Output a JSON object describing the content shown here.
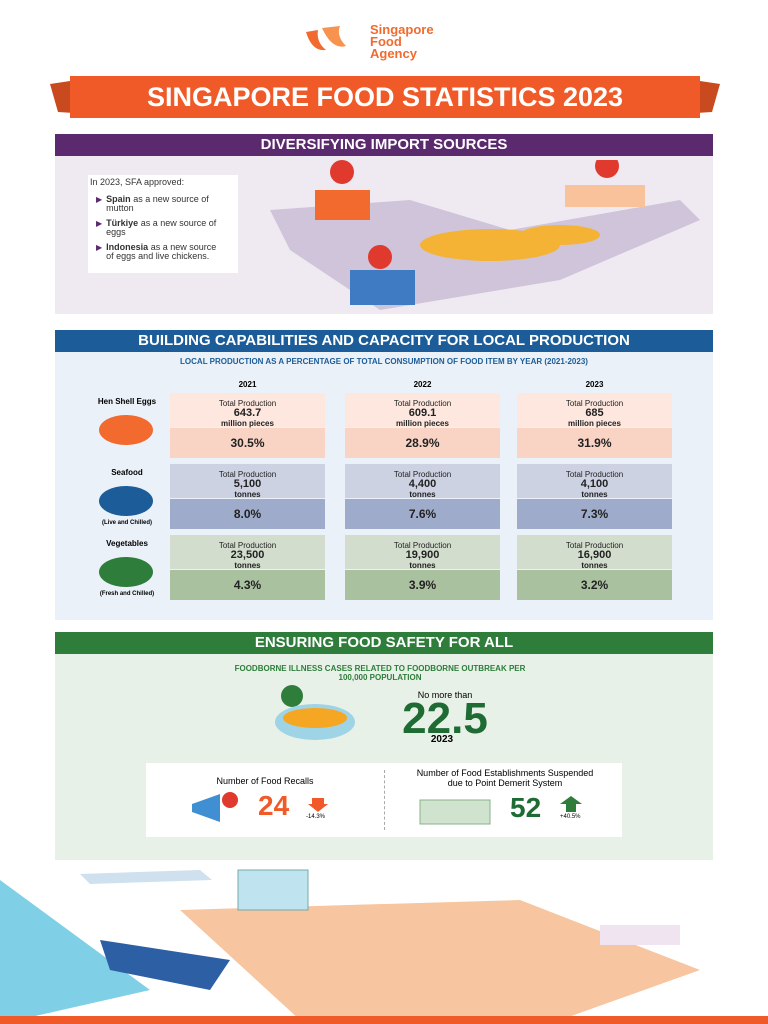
{
  "header": {
    "logo": [
      "Singapore",
      "Food",
      "Agency"
    ],
    "title": "SINGAPORE FOOD STATISTICS 2023"
  },
  "imports": {
    "title": "DIVERSIFYING IMPORT SOURCES",
    "intro": "In 2023, SFA approved:",
    "items": [
      {
        "country": "Spain",
        "text": "as a new source of mutton"
      },
      {
        "country": "Türkiye",
        "text": "as a new source of eggs"
      },
      {
        "country": "Indonesia",
        "text": "as a new source of eggs and live chickens."
      }
    ]
  },
  "local": {
    "title": "BUILDING CAPABILITIES AND CAPACITY FOR LOCAL PRODUCTION",
    "subtitle": "LOCAL PRODUCTION AS A PERCENTAGE OF TOTAL CONSUMPTION OF FOOD ITEM BY YEAR (2021-2023)",
    "years": [
      "2021",
      "2022",
      "2023"
    ],
    "production_label": "Total Production",
    "items": [
      {
        "name": "Hen Shell Eggs",
        "unit": "million pieces",
        "production": [
          "643.7",
          "609.1",
          "685"
        ],
        "share": [
          "30.5%",
          "28.9%",
          "31.9%"
        ]
      },
      {
        "name": "Seafood",
        "note": "(Live and Chilled)",
        "unit": "tonnes",
        "production": [
          "5,100",
          "4,400",
          "4,100"
        ],
        "share": [
          "8.0%",
          "7.6%",
          "7.3%"
        ]
      },
      {
        "name": "Vegetables",
        "note": "(Fresh and Chilled)",
        "unit": "tonnes",
        "production": [
          "23,500",
          "19,900",
          "16,900"
        ],
        "share": [
          "4.3%",
          "3.9%",
          "3.2%"
        ]
      }
    ]
  },
  "safety": {
    "title": "ENSURING FOOD SAFETY FOR ALL",
    "metric_title": "FOODBORNE ILLNESS CASES RELATED TO FOODBORNE OUTBREAK PER 100,000 POPULATION",
    "metric_prefix": "No more than",
    "metric_value": "22.5",
    "metric_year": "2023",
    "recalls": {
      "label": "Number of Food Recalls",
      "value": "24",
      "change": "-14.3%"
    },
    "suspensions": {
      "label": "Number of Food Establishments Suspended due to Point Demerit System",
      "value": "52",
      "change": "+40.5%"
    }
  }
}
